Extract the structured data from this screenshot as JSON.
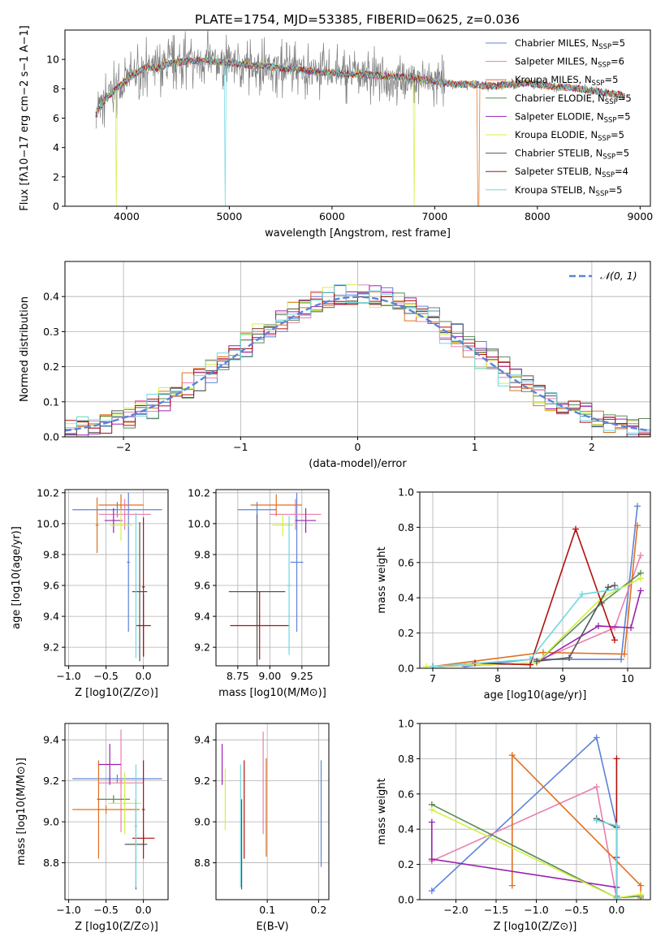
{
  "figure_title": "PLATE=1754, MJD=53385, FIBERID=0625, z=0.036",
  "palette": {
    "chabrier_miles": "#5b84d8",
    "salpeter_miles": "#e77fb0",
    "kroupa_miles": "#e07020",
    "chabrier_elodie": "#5a8a5a",
    "salpeter_elodie": "#9a22b0",
    "kroupa_elodie": "#d4f040",
    "chabrier_stelib": "#555555",
    "salpeter_stelib": "#b01010",
    "kroupa_stelib": "#70d8e0",
    "grid": "#b0b0b0",
    "data": "#808080",
    "normal_curve": "#5b84d8"
  },
  "chart_data": [
    {
      "id": "spectrum",
      "type": "line",
      "xlabel": "wavelength [Angstrom, rest frame]",
      "ylabel": "Flux [fλ10−17 erg cm−2 s−1 A−1]",
      "xlim": [
        3400,
        9100
      ],
      "ylim": [
        0,
        12
      ],
      "xticks": [
        4000,
        5000,
        6000,
        7000,
        8000,
        9000
      ],
      "yticks": [
        0,
        2,
        4,
        6,
        8,
        10
      ],
      "grid": false,
      "legend_position": "upper right",
      "data_x": [
        3700,
        3800,
        3900,
        4000,
        4100,
        4200,
        4300,
        4400,
        4500,
        4600,
        4700,
        4800,
        4900,
        5000,
        5100,
        5200,
        5300,
        5400,
        5500,
        5600,
        5700,
        5800,
        5900,
        6000,
        6100,
        6200,
        6300,
        6400,
        6500,
        6600,
        6700,
        6800,
        6900,
        7000,
        7100,
        7200,
        7300,
        7400,
        7500,
        7600,
        7700,
        7800,
        7900,
        8000,
        8100,
        8200,
        8300,
        8400,
        8500,
        8600,
        8700,
        8800,
        8850
      ],
      "data_y": [
        6.2,
        7.4,
        8.0,
        8.6,
        9.1,
        9.5,
        9.4,
        9.7,
        9.8,
        9.9,
        9.9,
        9.9,
        9.8,
        9.8,
        9.7,
        9.6,
        9.6,
        9.5,
        9.4,
        9.4,
        9.3,
        9.2,
        9.1,
        9.1,
        9.0,
        9.0,
        9.0,
        8.9,
        8.9,
        8.8,
        8.8,
        8.7,
        8.6,
        8.5,
        8.4,
        8.3,
        8.3,
        8.3,
        8.2,
        8.2,
        8.3,
        8.3,
        8.4,
        8.3,
        8.2,
        8.1,
        8.1,
        8.0,
        7.9,
        7.8,
        7.7,
        7.6,
        7.5
      ],
      "series": [
        {
          "name": "Chabrier MILES, N",
          "nssp": "=5",
          "color": "#5b84d8"
        },
        {
          "name": "Salpeter MILES, N",
          "nssp": "=6",
          "color": "#e77fb0"
        },
        {
          "name": "Kroupa MILES, N",
          "nssp": "=5",
          "color": "#e07020"
        },
        {
          "name": "Chabrier ELODIE, N",
          "nssp": "=5",
          "color": "#5a8a5a"
        },
        {
          "name": "Salpeter ELODIE, N",
          "nssp": "=5",
          "color": "#9a22b0"
        },
        {
          "name": "Kroupa ELODIE, N",
          "nssp": "=5",
          "color": "#d4f040"
        },
        {
          "name": "Chabrier STELIB, N",
          "nssp": "=5",
          "color": "#555555"
        },
        {
          "name": "Salpeter STELIB, N",
          "nssp": "=4",
          "color": "#b01010"
        },
        {
          "name": "Kroupa STELIB, N",
          "nssp": "=5",
          "color": "#70d8e0"
        }
      ],
      "subscript": "SSP"
    },
    {
      "id": "residuals",
      "type": "line",
      "xlabel": "(data-model)/error",
      "ylabel": "Normed distribution",
      "xlim": [
        -2.5,
        2.5
      ],
      "ylim": [
        0,
        0.5
      ],
      "xticks": [
        -2,
        -1,
        0,
        1,
        2
      ],
      "yticks": [
        0.0,
        0.1,
        0.2,
        0.3,
        0.4
      ],
      "grid": true,
      "legend": "𝒩(0, 1)",
      "legend_position": "upper right",
      "normal_curve": {
        "mu": 0,
        "sigma": 1
      }
    },
    {
      "id": "age_vs_Z",
      "type": "scatter",
      "xlabel": "Z [log10(Z/Z⊙)]",
      "ylabel": "age  [log10(age/yr)]",
      "xlim": [
        -1.05,
        0.33
      ],
      "ylim": [
        9.08,
        10.22
      ],
      "xticks": [
        -1.0,
        -0.5,
        0.0
      ],
      "yticks": [
        9.2,
        9.4,
        9.6,
        9.8,
        10.0,
        10.2
      ],
      "grid": true,
      "points": [
        {
          "x": -0.2,
          "xerr": 0.02,
          "y": 9.75,
          "yerr": 0.45,
          "color": "#5b84d8"
        },
        {
          "x": -0.35,
          "xerr": 0.6,
          "y": 10.09,
          "yerr": 0.05,
          "color": "#5b84d8"
        },
        {
          "x": -0.25,
          "xerr": 0.35,
          "y": 10.06,
          "yerr": 0.1,
          "color": "#e77fb0"
        },
        {
          "x": -0.3,
          "xerr": 0.3,
          "y": 10.12,
          "yerr": 0.07,
          "color": "#e07020"
        },
        {
          "x": -0.62,
          "xerr": 0.02,
          "y": 9.99,
          "yerr": 0.18,
          "color": "#e07020"
        },
        {
          "x": -0.4,
          "xerr": 0.12,
          "y": 10.02,
          "yerr": 0.08,
          "color": "#9a22b0"
        },
        {
          "x": -0.3,
          "xerr": 0.15,
          "y": 9.99,
          "yerr": 0.1,
          "color": "#d4f040"
        },
        {
          "x": -0.05,
          "xerr": 0.1,
          "y": 9.56,
          "yerr": 0.45,
          "color": "#555555"
        },
        {
          "x": 0.0,
          "xerr": 0.1,
          "y": 9.34,
          "yerr": 0.2,
          "color": "#b01010"
        },
        {
          "x": 0.0,
          "xerr": 0.02,
          "y": 9.59,
          "yerr": 0.45,
          "color": "#b01010"
        },
        {
          "x": -0.1,
          "xerr": 0.02,
          "y": 9.6,
          "yerr": 0.47,
          "color": "#70d8e0"
        }
      ]
    },
    {
      "id": "age_vs_mass",
      "type": "scatter",
      "xlabel": "mass [log10(M/M⊙)]",
      "ylabel": "",
      "xlim": [
        8.58,
        9.46
      ],
      "ylim": [
        9.08,
        10.22
      ],
      "xticks": [
        8.75,
        9.0,
        9.25
      ],
      "yticks": [
        9.2,
        9.4,
        9.6,
        9.8,
        10.0,
        10.2
      ],
      "grid": true,
      "points": [
        {
          "x": 9.21,
          "xerr": 0.05,
          "y": 9.75,
          "yerr": 0.45,
          "color": "#5b84d8"
        },
        {
          "x": 8.9,
          "xerr": 0.15,
          "y": 10.09,
          "yerr": 0.05,
          "color": "#5b84d8"
        },
        {
          "x": 9.2,
          "xerr": 0.2,
          "y": 10.06,
          "yerr": 0.1,
          "color": "#e77fb0"
        },
        {
          "x": 9.05,
          "xerr": 0.2,
          "y": 10.12,
          "yerr": 0.07,
          "color": "#e07020"
        },
        {
          "x": 9.28,
          "xerr": 0.08,
          "y": 10.02,
          "yerr": 0.08,
          "color": "#9a22b0"
        },
        {
          "x": 9.1,
          "xerr": 0.08,
          "y": 9.99,
          "yerr": 0.07,
          "color": "#d4f040"
        },
        {
          "x": 8.9,
          "xerr": 0.22,
          "y": 9.56,
          "yerr": 0.5,
          "color": "#555555"
        },
        {
          "x": 8.92,
          "xerr": 0.23,
          "y": 9.34,
          "yerr": 0.22,
          "color": "#b01010"
        },
        {
          "x": 9.15,
          "xerr": 0.02,
          "y": 9.6,
          "yerr": 0.45,
          "color": "#70d8e0"
        }
      ]
    },
    {
      "id": "mass_weight_vs_age",
      "type": "line",
      "xlabel": "age  [log10(age/yr)]",
      "ylabel": "mass weight",
      "xlim": [
        6.8,
        10.35
      ],
      "ylim": [
        0,
        1.0
      ],
      "xticks": [
        7,
        8,
        9,
        10
      ],
      "yticks": [
        0.0,
        0.2,
        0.4,
        0.6,
        0.8,
        1.0
      ],
      "grid": true,
      "series": [
        {
          "color": "#5b84d8",
          "x": [
            7.5,
            8.5,
            9.9,
            10.15
          ],
          "y": [
            0.01,
            0.05,
            0.05,
            0.92
          ]
        },
        {
          "color": "#e77fb0",
          "x": [
            8.6,
            9.8,
            10.2
          ],
          "y": [
            0.04,
            0.23,
            0.64
          ]
        },
        {
          "color": "#e07020",
          "x": [
            7.0,
            8.7,
            9.95,
            10.15
          ],
          "y": [
            0.01,
            0.09,
            0.08,
            0.81
          ]
        },
        {
          "color": "#5a8a5a",
          "x": [
            7.0,
            8.6,
            9.6,
            10.2
          ],
          "y": [
            0.01,
            0.03,
            0.37,
            0.54
          ]
        },
        {
          "color": "#9a22b0",
          "x": [
            7.0,
            8.6,
            9.55,
            10.05,
            10.2
          ],
          "y": [
            0.01,
            0.03,
            0.24,
            0.23,
            0.44
          ]
        },
        {
          "color": "#d4f040",
          "x": [
            6.9,
            8.6,
            9.6,
            10.2
          ],
          "y": [
            0.01,
            0.03,
            0.4,
            0.51
          ]
        },
        {
          "color": "#555555",
          "x": [
            8.6,
            9.1,
            9.7,
            9.8
          ],
          "y": [
            0.04,
            0.06,
            0.46,
            0.47
          ]
        },
        {
          "color": "#b01010",
          "x": [
            7.65,
            8.5,
            9.2,
            9.8
          ],
          "y": [
            0.03,
            0.02,
            0.79,
            0.16
          ]
        },
        {
          "color": "#70d8e0",
          "x": [
            7.0,
            8.5,
            9.3,
            9.85
          ],
          "y": [
            0.01,
            0.05,
            0.42,
            0.45
          ]
        }
      ]
    },
    {
      "id": "mass_vs_Z",
      "type": "scatter",
      "xlabel": "Z [log10(Z/Z⊙)]",
      "ylabel": "mass [log10(M/M⊙)]",
      "xlim": [
        -1.05,
        0.33
      ],
      "ylim": [
        8.62,
        9.48
      ],
      "xticks": [
        -1.0,
        -0.5,
        0.0
      ],
      "yticks": [
        8.8,
        9.0,
        9.2,
        9.4
      ],
      "grid": true,
      "points": [
        {
          "x": -0.35,
          "xerr": 0.6,
          "y": 9.21,
          "yerr": 0.02,
          "color": "#5b84d8"
        },
        {
          "x": -0.3,
          "xerr": 0.02,
          "y": 9.2,
          "yerr": 0.25,
          "color": "#e77fb0"
        },
        {
          "x": -0.3,
          "xerr": 0.3,
          "y": 9.19,
          "yerr": 0.02,
          "color": "#e77fb0"
        },
        {
          "x": -0.5,
          "xerr": 0.45,
          "y": 9.06,
          "yerr": 0.02,
          "color": "#e07020"
        },
        {
          "x": -0.6,
          "xerr": 0.02,
          "y": 9.06,
          "yerr": 0.24,
          "color": "#e07020"
        },
        {
          "x": -0.4,
          "xerr": 0.22,
          "y": 9.11,
          "yerr": 0.02,
          "color": "#5a8a5a"
        },
        {
          "x": -0.45,
          "xerr": 0.15,
          "y": 9.28,
          "yerr": 0.1,
          "color": "#9a22b0"
        },
        {
          "x": -0.25,
          "xerr": 0.22,
          "y": 9.09,
          "yerr": 0.15,
          "color": "#d4f040"
        },
        {
          "x": -0.1,
          "xerr": 0.15,
          "y": 8.89,
          "yerr": 0.22,
          "color": "#555555"
        },
        {
          "x": 0.0,
          "xerr": 0.15,
          "y": 8.92,
          "yerr": 0.02,
          "color": "#b01010"
        },
        {
          "x": 0.0,
          "xerr": 0.02,
          "y": 9.06,
          "yerr": 0.24,
          "color": "#b01010"
        },
        {
          "x": -0.1,
          "xerr": 0.02,
          "y": 8.98,
          "yerr": 0.3,
          "color": "#70d8e0"
        }
      ]
    },
    {
      "id": "mass_vs_ebv",
      "type": "scatter",
      "xlabel": "E(B-V)",
      "ylabel": "",
      "xlim": [
        0.0,
        0.22
      ],
      "ylim": [
        8.62,
        9.48
      ],
      "xticks": [
        0.1,
        0.2
      ],
      "yticks": [
        8.8,
        9.0,
        9.2,
        9.4
      ],
      "grid": true,
      "points": [
        {
          "x": 0.205,
          "y": 9.04,
          "yerr": 0.26,
          "color": "#5b84d8"
        },
        {
          "x": 0.092,
          "y": 9.19,
          "yerr": 0.25,
          "color": "#e77fb0"
        },
        {
          "x": 0.098,
          "y": 9.07,
          "yerr": 0.24,
          "color": "#e07020"
        },
        {
          "x": 0.012,
          "y": 9.28,
          "yerr": 0.1,
          "color": "#9a22b0"
        },
        {
          "x": 0.018,
          "y": 9.11,
          "yerr": 0.15,
          "color": "#d4f040"
        },
        {
          "x": 0.05,
          "y": 8.89,
          "yerr": 0.22,
          "color": "#555555"
        },
        {
          "x": 0.055,
          "y": 9.06,
          "yerr": 0.24,
          "color": "#b01010"
        },
        {
          "x": 0.048,
          "y": 8.98,
          "yerr": 0.3,
          "color": "#70d8e0"
        }
      ]
    },
    {
      "id": "mass_weight_vs_Z",
      "type": "line",
      "xlabel": "Z [log10(Z/Z⊙)]",
      "ylabel": "mass weight",
      "xlim": [
        -2.45,
        0.42
      ],
      "ylim": [
        0,
        1.0
      ],
      "xticks": [
        -2.0,
        -1.5,
        -1.0,
        -0.5,
        0.0
      ],
      "yticks": [
        0.0,
        0.2,
        0.4,
        0.6,
        0.8,
        1.0
      ],
      "grid": true,
      "series": [
        {
          "color": "#5b84d8",
          "x": [
            -2.3,
            -0.25,
            0.0,
            0.0
          ],
          "y": [
            0.05,
            0.92,
            0.42,
            0.02
          ]
        },
        {
          "color": "#e77fb0",
          "x": [
            -2.3,
            -0.25,
            0.0
          ],
          "y": [
            0.22,
            0.64,
            0.01
          ]
        },
        {
          "color": "#e07020",
          "x": [
            -1.3,
            -1.3,
            0.3,
            0.3
          ],
          "y": [
            0.08,
            0.82,
            0.08,
            0.01
          ]
        },
        {
          "color": "#5a8a5a",
          "x": [
            -2.3,
            0.0,
            0.3
          ],
          "y": [
            0.54,
            0.01,
            0.02
          ]
        },
        {
          "color": "#9a22b0",
          "x": [
            -2.3,
            -2.3,
            0.0,
            0.0
          ],
          "y": [
            0.44,
            0.23,
            0.07,
            0.24
          ]
        },
        {
          "color": "#d4f040",
          "x": [
            -2.3,
            0.0,
            0.3
          ],
          "y": [
            0.51,
            0.01,
            0.03
          ]
        },
        {
          "color": "#555555",
          "x": [
            -0.25,
            0.0
          ],
          "y": [
            0.46,
            0.41
          ]
        },
        {
          "color": "#b01010",
          "x": [
            0.0,
            0.0
          ],
          "y": [
            0.8,
            0.01
          ]
        },
        {
          "color": "#70d8e0",
          "x": [
            -0.25,
            0.0,
            0.0
          ],
          "y": [
            0.45,
            0.42,
            0.01
          ]
        }
      ]
    }
  ]
}
